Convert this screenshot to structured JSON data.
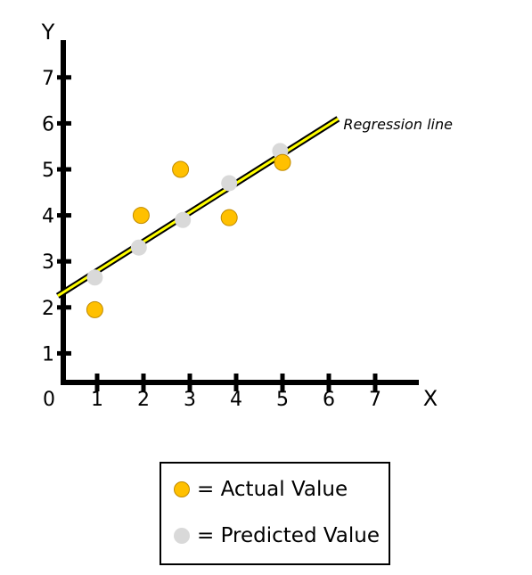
{
  "chart_data": {
    "type": "scatter",
    "xlabel": "X",
    "ylabel": "Y",
    "origin_label": "0",
    "xlim": [
      0,
      8
    ],
    "ylim": [
      0,
      8
    ],
    "x_ticks": [
      "1",
      "2",
      "3",
      "4",
      "5",
      "6",
      "7"
    ],
    "y_ticks": [
      "1",
      "2",
      "3",
      "4",
      "5",
      "6",
      "7"
    ],
    "grid": false,
    "series": [
      {
        "name": "Actual Value",
        "color": "#FFC000",
        "points": [
          {
            "x": 0.95,
            "y": 1.95
          },
          {
            "x": 1.95,
            "y": 4.0
          },
          {
            "x": 2.8,
            "y": 5.0
          },
          {
            "x": 3.85,
            "y": 3.95
          },
          {
            "x": 5.0,
            "y": 5.15
          }
        ]
      },
      {
        "name": "Predicted Value",
        "color": "#D9D9D9",
        "points": [
          {
            "x": 0.95,
            "y": 2.65
          },
          {
            "x": 1.9,
            "y": 3.3
          },
          {
            "x": 2.85,
            "y": 3.9
          },
          {
            "x": 3.85,
            "y": 4.7
          },
          {
            "x": 4.95,
            "y": 5.4
          }
        ]
      }
    ],
    "regression_line": {
      "label": "Regression line",
      "color": "#FFFF00",
      "x": [
        0.15,
        6.2
      ],
      "y": [
        2.25,
        6.1
      ]
    },
    "legend": {
      "placement": "bottom",
      "items": [
        {
          "label": "= Actual Value",
          "color": "#FFC000"
        },
        {
          "label": "= Predicted Value",
          "color": "#D9D9D9"
        }
      ]
    }
  }
}
